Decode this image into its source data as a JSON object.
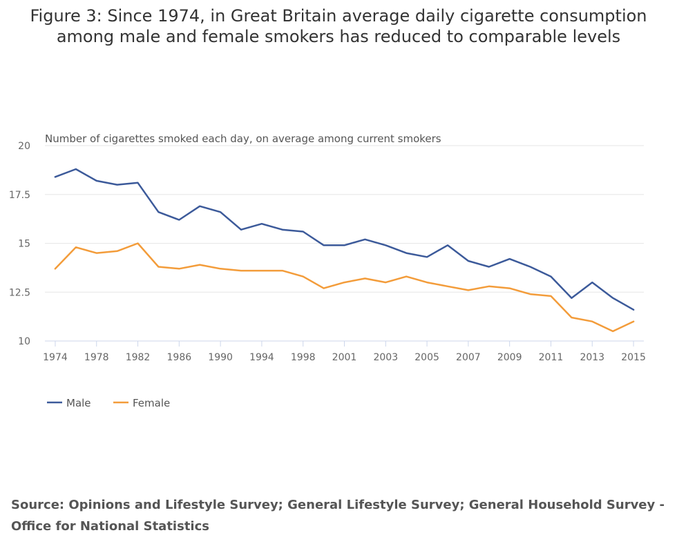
{
  "title": {
    "line1": "Figure 3: Since 1974, in Great Britain average daily cigarette consumption",
    "line2": "among male and female smokers has reduced to comparable levels"
  },
  "source": "Source: Opinions and Lifestyle Survey; General Lifestyle Survey; General Household Survey - Office for National Statistics",
  "chart_data": {
    "type": "line",
    "ylabel": "Number of cigarettes smoked each day, on average among current smokers",
    "xlabel": "",
    "ylim": [
      10,
      20
    ],
    "yticks": [
      "10",
      "12.5",
      "15",
      "17.5",
      "20"
    ],
    "grid": true,
    "legend_position": "bottom-left",
    "x": [
      "1974",
      "1976",
      "1978",
      "1980",
      "1982",
      "1984",
      "1986",
      "1988",
      "1990",
      "1992",
      "1994",
      "1996",
      "1998",
      "2000",
      "2001",
      "2002",
      "2003",
      "2004",
      "2005",
      "2006",
      "2007",
      "2008",
      "2009",
      "2010",
      "2011",
      "2012",
      "2013",
      "2014",
      "2015"
    ],
    "xtick_labels": [
      "1974",
      "1978",
      "1982",
      "1986",
      "1990",
      "1994",
      "1998",
      "2001",
      "2003",
      "2005",
      "2007",
      "2009",
      "2011",
      "2013",
      "2015"
    ],
    "series": [
      {
        "name": "Male",
        "color": "#3c5a9a",
        "values": [
          18.4,
          18.8,
          18.2,
          18.0,
          18.1,
          16.6,
          16.2,
          16.9,
          16.6,
          15.7,
          16.0,
          15.7,
          15.6,
          14.9,
          14.9,
          15.2,
          14.9,
          14.5,
          14.3,
          14.9,
          14.1,
          13.8,
          14.2,
          13.8,
          13.3,
          12.2,
          13.0,
          12.2,
          11.6
        ]
      },
      {
        "name": "Female",
        "color": "#f39c3a",
        "values": [
          13.7,
          14.8,
          14.5,
          14.6,
          15.0,
          13.8,
          13.7,
          13.9,
          13.7,
          13.6,
          13.6,
          13.6,
          13.3,
          12.7,
          13.0,
          13.2,
          13.0,
          13.3,
          13.0,
          12.8,
          12.6,
          12.8,
          12.7,
          12.4,
          12.3,
          11.2,
          11.0,
          10.5,
          11.0
        ]
      }
    ]
  }
}
